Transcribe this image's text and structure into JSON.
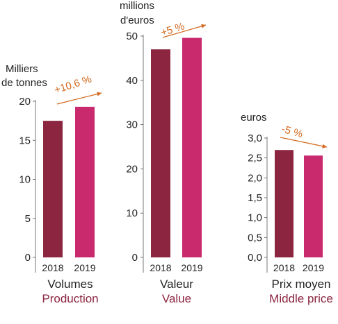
{
  "colors": {
    "bar_2018": "#8b2540",
    "bar_2019": "#c92a6e",
    "axis": "#555555",
    "arrow": "#d2691e",
    "sublabel": "#8b2540",
    "text": "#222222"
  },
  "chart_data": [
    {
      "type": "bar",
      "categories": [
        "2018",
        "2019"
      ],
      "values": [
        17.5,
        19.3
      ],
      "ylabel": "Milliers\nde tonnes",
      "ylim": [
        0,
        20
      ],
      "yticks": [
        "0",
        "5",
        "10",
        "15",
        "20"
      ],
      "xlabel": "Volumes",
      "xlabel_en": "Production",
      "annotation": "+10,6 %"
    },
    {
      "type": "bar",
      "categories": [
        "2018",
        "2019"
      ],
      "values": [
        47,
        49.6
      ],
      "ylabel": "millions\nd'euros",
      "ylim": [
        0,
        50
      ],
      "yticks": [
        "0",
        "10",
        "20",
        "30",
        "40",
        "50"
      ],
      "xlabel": "Valeur",
      "xlabel_en": "Value",
      "annotation": "+5 %"
    },
    {
      "type": "bar",
      "categories": [
        "2018",
        "2019"
      ],
      "values": [
        2.7,
        2.56
      ],
      "ylabel": "euros",
      "ylim": [
        0,
        3
      ],
      "yticks": [
        "0,0",
        "0,5",
        "1,0",
        "1,5",
        "2,0",
        "2,5",
        "3,0"
      ],
      "xlabel": "Prix moyen",
      "xlabel_en": "Middle price",
      "annotation": "-5 %"
    }
  ]
}
